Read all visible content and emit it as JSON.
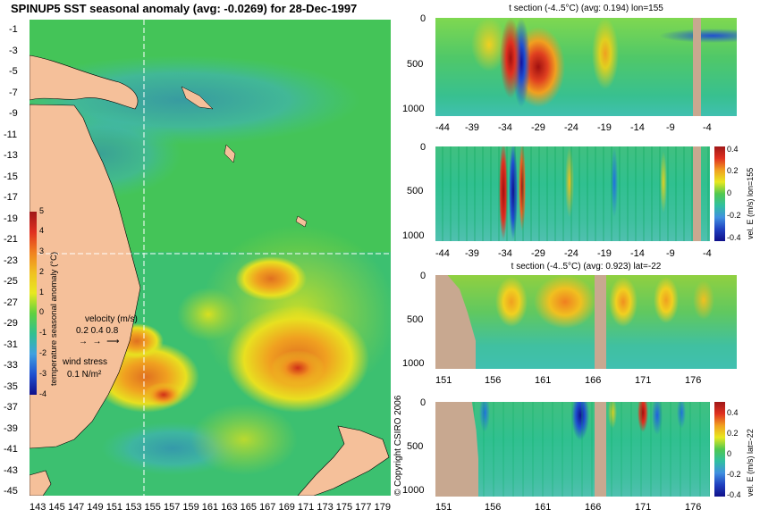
{
  "chart_data": [
    {
      "type": "heatmap",
      "title": "SPINUP5 SST seasonal anomaly (avg: -0.0269) for 28-Dec-1997",
      "x_ticks": [
        "143",
        "145",
        "147",
        "149",
        "151",
        "153",
        "155",
        "157",
        "159",
        "161",
        "163",
        "165",
        "167",
        "169",
        "171",
        "173",
        "175",
        "177",
        "179"
      ],
      "y_ticks": [
        "-1",
        "-3",
        "-5",
        "-7",
        "-9",
        "-11",
        "-13",
        "-15",
        "-17",
        "-19",
        "-21",
        "-23",
        "-25",
        "-27",
        "-29",
        "-31",
        "-33",
        "-35",
        "-37",
        "-39",
        "-41",
        "-43",
        "-45"
      ],
      "colorbar": {
        "label": "temperature seasonal anomaly (°C)",
        "ticks": [
          "5",
          "4",
          "3",
          "2",
          "1",
          "0",
          "-1",
          "-2",
          "-3",
          "-4"
        ],
        "range": [
          -4,
          5
        ]
      },
      "legend": {
        "velocity_label": "velocity (m/s)",
        "velocity_values": "0.2 0.4 0.8",
        "wind_label": "wind stress",
        "wind_value": "0.1 N/m²"
      },
      "section_lines": {
        "lon": 155,
        "lat": -22
      }
    },
    {
      "type": "heatmap",
      "title": "t section (-4..5°C) (avg: 0.194) lon=155",
      "x_ticks": [
        "-44",
        "-39",
        "-34",
        "-29",
        "-24",
        "-19",
        "-14",
        "-9",
        "-4"
      ],
      "y_ticks": [
        "0",
        "500",
        "1000"
      ]
    },
    {
      "type": "heatmap",
      "title": "",
      "x_ticks": [
        "-44",
        "-39",
        "-34",
        "-29",
        "-24",
        "-19",
        "-14",
        "-9",
        "-4"
      ],
      "y_ticks": [
        "0",
        "500",
        "1000"
      ],
      "colorbar": {
        "label": "vel. E (m/s) lon=155",
        "ticks": [
          "0.4",
          "0.2",
          "0",
          "-0.2",
          "-0.4"
        ],
        "range": [
          -0.4,
          0.4
        ]
      }
    },
    {
      "type": "heatmap",
      "title": "t section (-4..5°C) (avg: 0.923) lat=-22",
      "x_ticks": [
        "151",
        "156",
        "161",
        "166",
        "171",
        "176"
      ],
      "y_ticks": [
        "0",
        "500",
        "1000"
      ]
    },
    {
      "type": "heatmap",
      "title": "",
      "x_ticks": [
        "151",
        "156",
        "161",
        "166",
        "171",
        "176"
      ],
      "y_ticks": [
        "0",
        "500",
        "1000"
      ],
      "colorbar": {
        "label": "vel. E (m/s) lat=-22",
        "ticks": [
          "0.4",
          "0.2",
          "0",
          "-0.2",
          "-0.4"
        ],
        "range": [
          -0.4,
          0.4
        ]
      }
    }
  ],
  "copyright": "© Copyright CSIRO 2006"
}
